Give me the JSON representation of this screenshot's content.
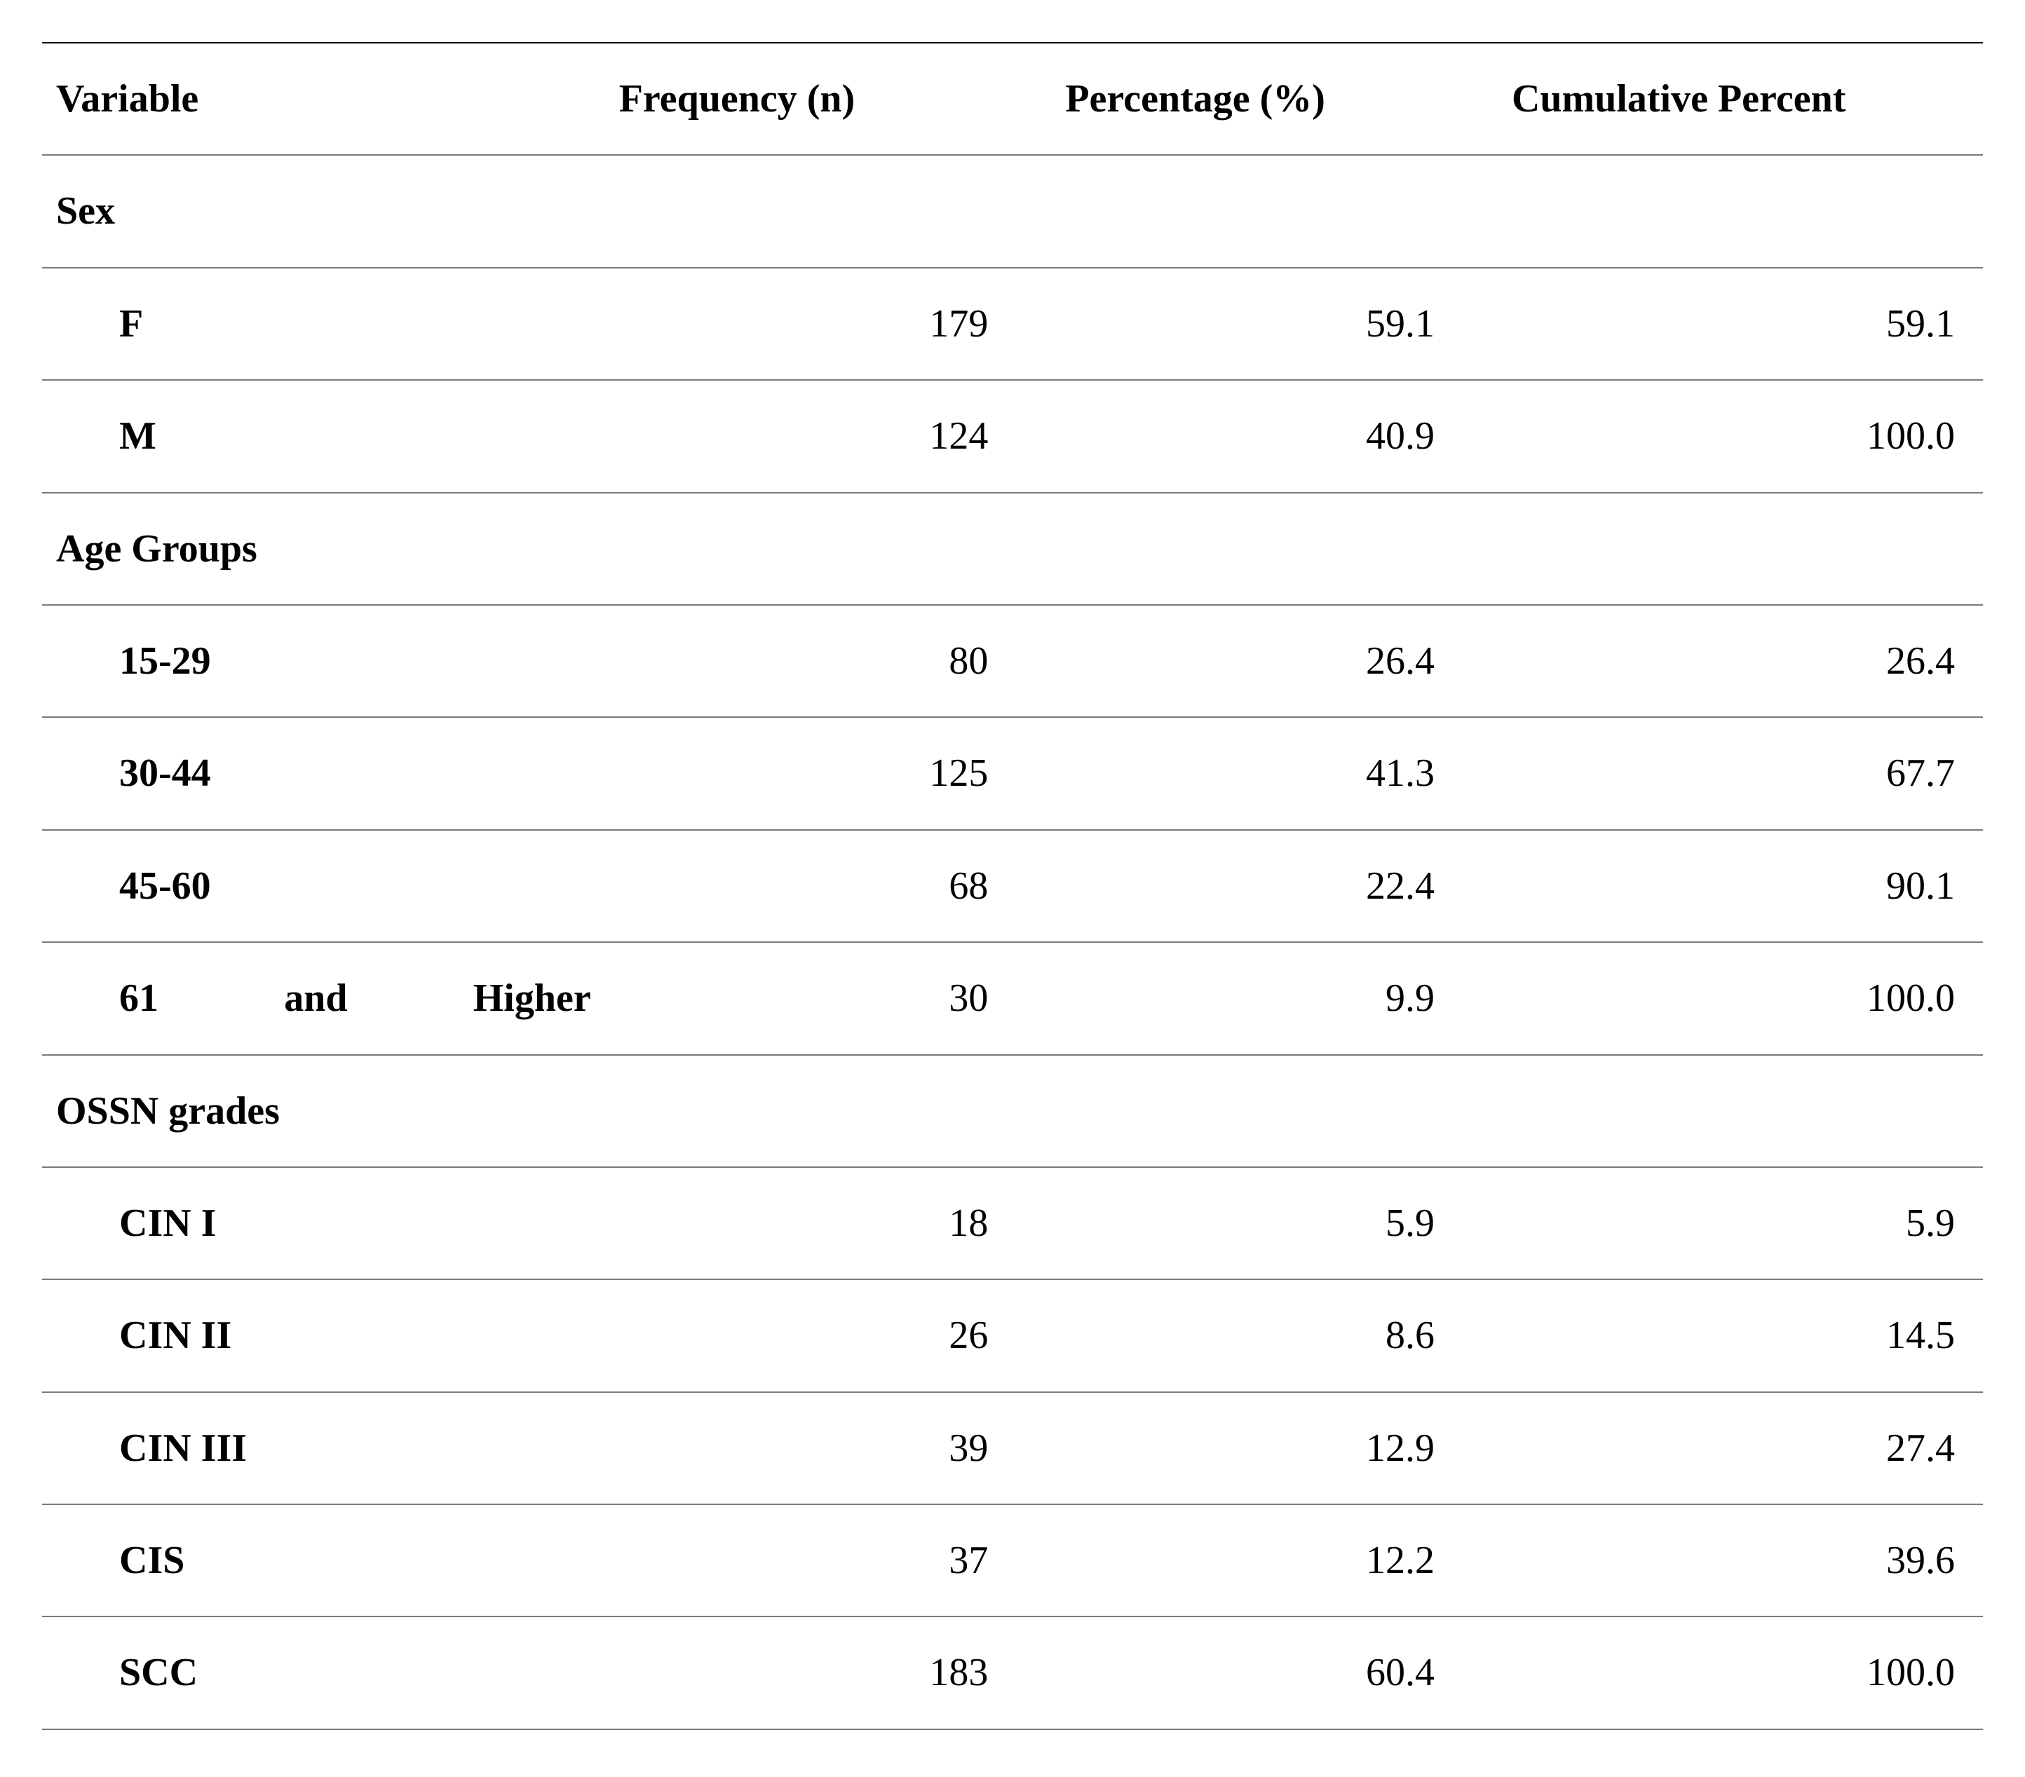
{
  "table": {
    "columns": [
      "Variable",
      "Frequency (n)",
      "Percentage (%)",
      "Cumulative Percent"
    ],
    "header_fontsize": 56,
    "body_fontsize": 56,
    "font_family": "Palatino/Book Antiqua serif",
    "border_color_top": "#000000",
    "border_color_row": "#7a7a7a",
    "background_color": "#ffffff",
    "text_color": "#000000",
    "col_widths_pct": [
      29,
      23,
      23,
      25
    ],
    "sections": [
      {
        "title": "Sex",
        "rows": [
          {
            "label": "F",
            "frequency": 179,
            "percentage": "59.1",
            "cumulative": "59.1"
          },
          {
            "label": "M",
            "frequency": 124,
            "percentage": "40.9",
            "cumulative": "100.0"
          }
        ]
      },
      {
        "title": "Age Groups",
        "rows": [
          {
            "label": "15-29",
            "frequency": 80,
            "percentage": "26.4",
            "cumulative": "26.4"
          },
          {
            "label": "30-44",
            "frequency": 125,
            "percentage": "41.3",
            "cumulative": "67.7"
          },
          {
            "label": "45-60",
            "frequency": 68,
            "percentage": "22.4",
            "cumulative": "90.1"
          },
          {
            "label": "61 and Higher",
            "label_justify": true,
            "frequency": 30,
            "percentage": "9.9",
            "cumulative": "100.0"
          }
        ]
      },
      {
        "title": "OSSN grades",
        "rows": [
          {
            "label": "CIN I",
            "frequency": 18,
            "percentage": "5.9",
            "cumulative": "5.9"
          },
          {
            "label": "CIN II",
            "frequency": 26,
            "percentage": "8.6",
            "cumulative": "14.5"
          },
          {
            "label": "CIN III",
            "frequency": 39,
            "percentage": "12.9",
            "cumulative": "27.4"
          },
          {
            "label": "CIS",
            "frequency": 37,
            "percentage": "12.2",
            "cumulative": "39.6"
          },
          {
            "label": "SCC",
            "frequency": 183,
            "percentage": "60.4",
            "cumulative": "100.0"
          }
        ]
      }
    ]
  }
}
